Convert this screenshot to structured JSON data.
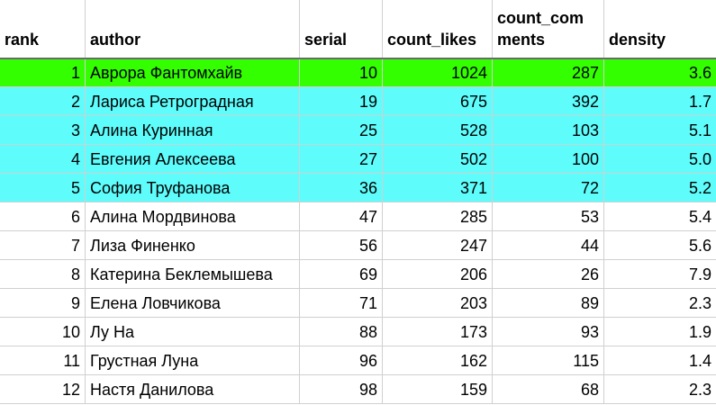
{
  "table": {
    "columns": [
      {
        "key": "rank",
        "label": "rank"
      },
      {
        "key": "author",
        "label": "author"
      },
      {
        "key": "serial",
        "label": "serial"
      },
      {
        "key": "count_likes",
        "label": "count_likes"
      },
      {
        "key": "count_comments",
        "label": "count_com ments"
      },
      {
        "key": "density",
        "label": "density"
      }
    ],
    "highlight_colors": {
      "top": "#33ff00",
      "next": "#5ffcfc"
    },
    "rows": [
      {
        "rank": "1",
        "author": "Аврора Фантомхайв",
        "serial": "10",
        "count_likes": "1024",
        "count_comments": "287",
        "density": "3.6",
        "highlight": "green"
      },
      {
        "rank": "2",
        "author": "Лариса Ретроградная",
        "serial": "19",
        "count_likes": "675",
        "count_comments": "392",
        "density": "1.7",
        "highlight": "cyan"
      },
      {
        "rank": "3",
        "author": "Алина Куринная",
        "serial": "25",
        "count_likes": "528",
        "count_comments": "103",
        "density": "5.1",
        "highlight": "cyan"
      },
      {
        "rank": "4",
        "author": "Евгения Алексеева",
        "serial": "27",
        "count_likes": "502",
        "count_comments": "100",
        "density": "5.0",
        "highlight": "cyan"
      },
      {
        "rank": "5",
        "author": "София Труфанова",
        "serial": "36",
        "count_likes": "371",
        "count_comments": "72",
        "density": "5.2",
        "highlight": "cyan"
      },
      {
        "rank": "6",
        "author": "Алина Мордвинова",
        "serial": "47",
        "count_likes": "285",
        "count_comments": "53",
        "density": "5.4",
        "highlight": ""
      },
      {
        "rank": "7",
        "author": "Лиза Финенко",
        "serial": "56",
        "count_likes": "247",
        "count_comments": "44",
        "density": "5.6",
        "highlight": ""
      },
      {
        "rank": "8",
        "author": "Катерина Беклемышева",
        "serial": "69",
        "count_likes": "206",
        "count_comments": "26",
        "density": "7.9",
        "highlight": ""
      },
      {
        "rank": "9",
        "author": "Елена Ловчикова",
        "serial": "71",
        "count_likes": "203",
        "count_comments": "89",
        "density": "2.3",
        "highlight": ""
      },
      {
        "rank": "10",
        "author": "Лу На",
        "serial": "88",
        "count_likes": "173",
        "count_comments": "93",
        "density": "1.9",
        "highlight": ""
      },
      {
        "rank": "11",
        "author": "Грустная Луна",
        "serial": "96",
        "count_likes": "162",
        "count_comments": "115",
        "density": "1.4",
        "highlight": ""
      },
      {
        "rank": "12",
        "author": "Настя Данилова",
        "serial": "98",
        "count_likes": "159",
        "count_comments": "68",
        "density": "2.3",
        "highlight": ""
      }
    ]
  }
}
